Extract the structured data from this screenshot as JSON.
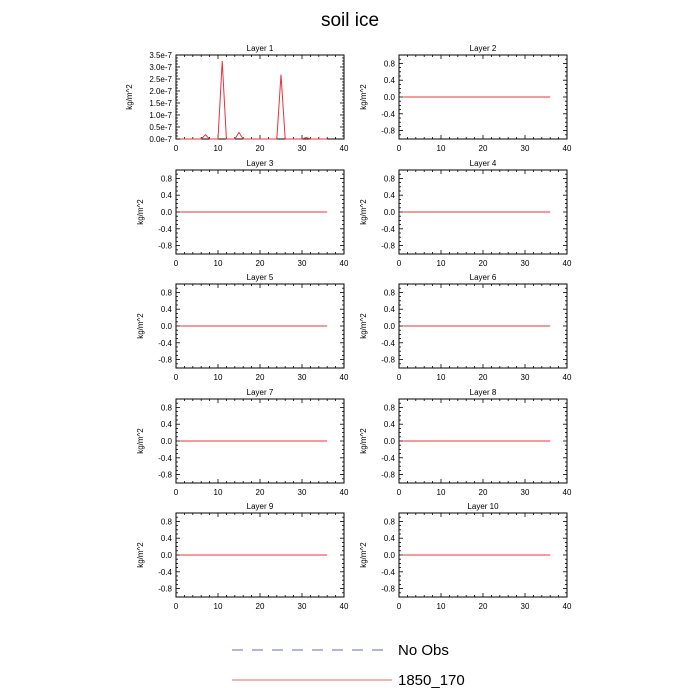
{
  "title": "soil ice",
  "legend": [
    {
      "name": "No Obs",
      "color": "#3333cc",
      "dash": "dashed"
    },
    {
      "name": "1850_170",
      "color": "#e8333a",
      "dash": "solid"
    }
  ],
  "chart_data": [
    {
      "type": "line",
      "title": "Layer 1",
      "ylabel": "kg/m^2",
      "xlim": [
        0,
        40
      ],
      "xticks": [
        0,
        10,
        20,
        30,
        40
      ],
      "ylim": [
        0,
        3.5e-07
      ],
      "yticks": [
        0,
        5e-08,
        1e-07,
        1.5e-07,
        2e-07,
        2.5e-07,
        3e-07,
        3.5e-07
      ],
      "ytick_labels": [
        "0.0e-7",
        "0.5e-7",
        "1.0e-7",
        "1.5e-7",
        "2.0e-7",
        "2.5e-7",
        "3.0e-7",
        "3.5e-7"
      ],
      "series": [
        {
          "name": "1850_170",
          "color": "#e8333a",
          "x": [
            1,
            2,
            3,
            4,
            5,
            6,
            7,
            8,
            9,
            10,
            11,
            12,
            13,
            14,
            15,
            16,
            17,
            18,
            19,
            20,
            21,
            22,
            23,
            24,
            25,
            26,
            27,
            28,
            29,
            30,
            31,
            32,
            33,
            34,
            35,
            36
          ],
          "y": [
            0,
            0,
            0,
            0,
            0,
            0,
            1.8e-08,
            0,
            0,
            0,
            3.25e-07,
            0,
            0,
            0,
            2.7e-08,
            0,
            0,
            0,
            0,
            0,
            0,
            0,
            0,
            0,
            2.68e-07,
            0,
            0,
            0,
            0,
            0,
            6e-09,
            0,
            0,
            0,
            0,
            0
          ]
        }
      ]
    },
    {
      "type": "line",
      "title": "Layer 2",
      "ylabel": "kg/m^2",
      "xlim": [
        0,
        40
      ],
      "xticks": [
        0,
        10,
        20,
        30,
        40
      ],
      "ylim": [
        -1,
        1
      ],
      "yticks": [
        -0.8,
        -0.4,
        0.0,
        0.4,
        0.8
      ],
      "ytick_labels": [
        "-0.8",
        "-0.4",
        "0.0",
        "0.4",
        "0.8"
      ],
      "series": [
        {
          "name": "1850_170",
          "color": "#e8333a",
          "x": [
            1,
            36
          ],
          "y": [
            0,
            0
          ]
        }
      ]
    },
    {
      "type": "line",
      "title": "Layer 3",
      "ylabel": "kg/m^2",
      "xlim": [
        0,
        40
      ],
      "xticks": [
        0,
        10,
        20,
        30,
        40
      ],
      "ylim": [
        -1,
        1
      ],
      "yticks": [
        -0.8,
        -0.4,
        0.0,
        0.4,
        0.8
      ],
      "ytick_labels": [
        "-0.8",
        "-0.4",
        "0.0",
        "0.4",
        "0.8"
      ],
      "series": [
        {
          "name": "1850_170",
          "color": "#e8333a",
          "x": [
            1,
            36
          ],
          "y": [
            0,
            0
          ]
        }
      ]
    },
    {
      "type": "line",
      "title": "Layer 4",
      "ylabel": "kg/m^2",
      "xlim": [
        0,
        40
      ],
      "xticks": [
        0,
        10,
        20,
        30,
        40
      ],
      "ylim": [
        -1,
        1
      ],
      "yticks": [
        -0.8,
        -0.4,
        0.0,
        0.4,
        0.8
      ],
      "ytick_labels": [
        "-0.8",
        "-0.4",
        "0.0",
        "0.4",
        "0.8"
      ],
      "series": [
        {
          "name": "1850_170",
          "color": "#e8333a",
          "x": [
            1,
            36
          ],
          "y": [
            0,
            0
          ]
        }
      ]
    },
    {
      "type": "line",
      "title": "Layer 5",
      "ylabel": "kg/m^2",
      "xlim": [
        0,
        40
      ],
      "xticks": [
        0,
        10,
        20,
        30,
        40
      ],
      "ylim": [
        -1,
        1
      ],
      "yticks": [
        -0.8,
        -0.4,
        0.0,
        0.4,
        0.8
      ],
      "ytick_labels": [
        "-0.8",
        "-0.4",
        "0.0",
        "0.4",
        "0.8"
      ],
      "series": [
        {
          "name": "1850_170",
          "color": "#e8333a",
          "x": [
            1,
            36
          ],
          "y": [
            0,
            0
          ]
        }
      ]
    },
    {
      "type": "line",
      "title": "Layer 6",
      "ylabel": "kg/m^2",
      "xlim": [
        0,
        40
      ],
      "xticks": [
        0,
        10,
        20,
        30,
        40
      ],
      "ylim": [
        -1,
        1
      ],
      "yticks": [
        -0.8,
        -0.4,
        0.0,
        0.4,
        0.8
      ],
      "ytick_labels": [
        "-0.8",
        "-0.4",
        "0.0",
        "0.4",
        "0.8"
      ],
      "series": [
        {
          "name": "1850_170",
          "color": "#e8333a",
          "x": [
            1,
            36
          ],
          "y": [
            0,
            0
          ]
        }
      ]
    },
    {
      "type": "line",
      "title": "Layer 7",
      "ylabel": "kg/m^2",
      "xlim": [
        0,
        40
      ],
      "xticks": [
        0,
        10,
        20,
        30,
        40
      ],
      "ylim": [
        -1,
        1
      ],
      "yticks": [
        -0.8,
        -0.4,
        0.0,
        0.4,
        0.8
      ],
      "ytick_labels": [
        "-0.8",
        "-0.4",
        "0.0",
        "0.4",
        "0.8"
      ],
      "series": [
        {
          "name": "1850_170",
          "color": "#e8333a",
          "x": [
            1,
            36
          ],
          "y": [
            0,
            0
          ]
        }
      ]
    },
    {
      "type": "line",
      "title": "Layer 8",
      "ylabel": "kg/m^2",
      "xlim": [
        0,
        40
      ],
      "xticks": [
        0,
        10,
        20,
        30,
        40
      ],
      "ylim": [
        -1,
        1
      ],
      "yticks": [
        -0.8,
        -0.4,
        0.0,
        0.4,
        0.8
      ],
      "ytick_labels": [
        "-0.8",
        "-0.4",
        "0.0",
        "0.4",
        "0.8"
      ],
      "series": [
        {
          "name": "1850_170",
          "color": "#e8333a",
          "x": [
            1,
            36
          ],
          "y": [
            0,
            0
          ]
        }
      ]
    },
    {
      "type": "line",
      "title": "Layer 9",
      "ylabel": "kg/m^2",
      "xlim": [
        0,
        40
      ],
      "xticks": [
        0,
        10,
        20,
        30,
        40
      ],
      "ylim": [
        -1,
        1
      ],
      "yticks": [
        -0.8,
        -0.4,
        0.0,
        0.4,
        0.8
      ],
      "ytick_labels": [
        "-0.8",
        "-0.4",
        "0.0",
        "0.4",
        "0.8"
      ],
      "series": [
        {
          "name": "1850_170",
          "color": "#e8333a",
          "x": [
            1,
            36
          ],
          "y": [
            0,
            0
          ]
        }
      ]
    },
    {
      "type": "line",
      "title": "Layer 10",
      "ylabel": "kg/m^2",
      "xlim": [
        0,
        40
      ],
      "xticks": [
        0,
        10,
        20,
        30,
        40
      ],
      "ylim": [
        -1,
        1
      ],
      "yticks": [
        -0.8,
        -0.4,
        0.0,
        0.4,
        0.8
      ],
      "ytick_labels": [
        "-0.8",
        "-0.4",
        "0.0",
        "0.4",
        "0.8"
      ],
      "series": [
        {
          "name": "1850_170",
          "color": "#e8333a",
          "x": [
            1,
            36
          ],
          "y": [
            0,
            0
          ]
        }
      ]
    }
  ]
}
